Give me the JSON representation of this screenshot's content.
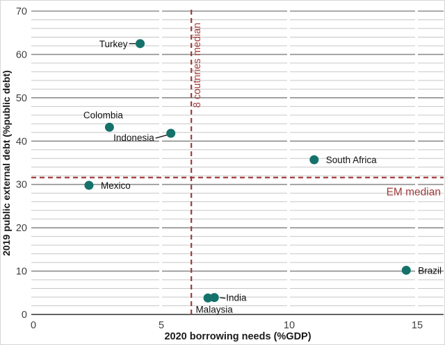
{
  "figure": {
    "background": "#ffffff",
    "border_color": "#d6d6d6"
  },
  "chart_data": {
    "type": "scatter",
    "title": "",
    "xlabel": "2020 borrowing needs (%GDP)",
    "ylabel": "2019 public external debt (%public debt)",
    "xlim": [
      0,
      16
    ],
    "ylim": [
      0,
      70
    ],
    "x_ticks": [
      0,
      5,
      10,
      15
    ],
    "y_ticks": [
      0,
      10,
      20,
      30,
      40,
      50,
      60,
      70
    ],
    "y_minor_grid_step": 2,
    "grid": "horizontal, minor every 2 and darker major every 10; white tick breaks at x=5,10,15",
    "legend_position": "none",
    "point_color": "#15726b",
    "ref_line_color": "#a23b3b",
    "grid_minor_color": "#c6c6c6",
    "grid_major_color": "#8e8e8e",
    "axis_line_color": "#4d4d4d",
    "tick_label_color": "#3f3f3f",
    "point_label_color": "#111111",
    "points": [
      {
        "name": "Turkey",
        "x": 4.2,
        "y": 62.5,
        "label_side": "left",
        "connector": true
      },
      {
        "name": "Colombia",
        "x": 3.0,
        "y": 43.2,
        "label_side": "above",
        "connector": false
      },
      {
        "name": "Indonesia",
        "x": 5.4,
        "y": 41.8,
        "label_side": "left-below",
        "connector": true
      },
      {
        "name": "Mexico",
        "x": 2.2,
        "y": 29.8,
        "label_side": "right",
        "connector": false
      },
      {
        "name": "South Africa",
        "x": 11.0,
        "y": 35.7,
        "label_side": "right",
        "connector": false
      },
      {
        "name": "Brazil",
        "x": 14.6,
        "y": 10.2,
        "label_side": "right",
        "connector": false
      },
      {
        "name": "India",
        "x": 7.1,
        "y": 3.9,
        "label_side": "right",
        "connector": true
      },
      {
        "name": "Malaysia",
        "x": 6.85,
        "y": 3.8,
        "label_side": "below",
        "connector": false
      }
    ],
    "reference_lines": [
      {
        "axis": "x",
        "value": 6.2,
        "label": "8 coutnries median",
        "style": "dashed"
      },
      {
        "axis": "y",
        "value": 31.6,
        "label": "EM median",
        "style": "dashed"
      }
    ]
  }
}
